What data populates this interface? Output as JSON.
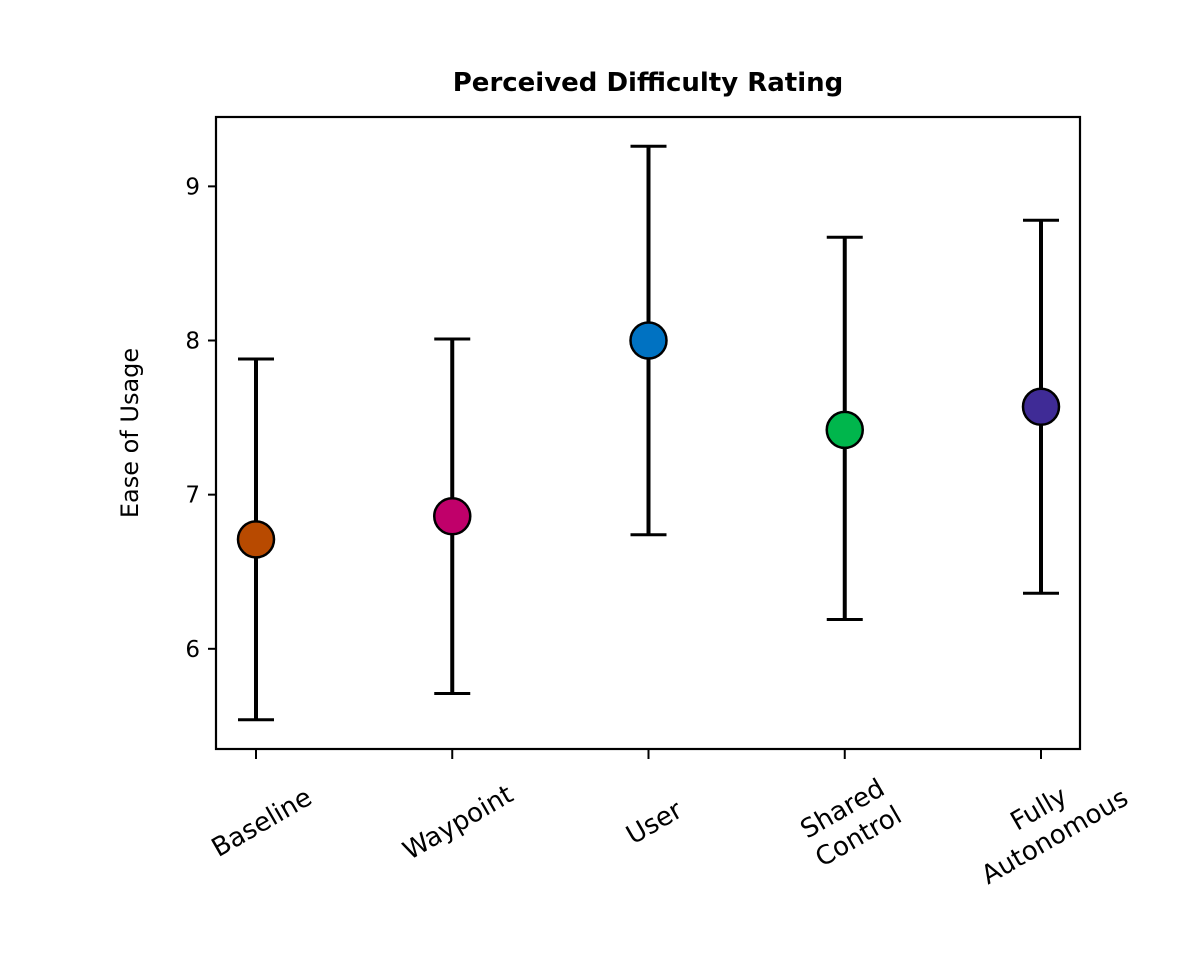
{
  "chart_data": {
    "type": "scatter",
    "title": "Perceived Difficulty Rating",
    "xlabel": "",
    "ylabel": "Ease of Usage",
    "ylim": [
      5.35,
      9.45
    ],
    "yticks": [
      6,
      7,
      8,
      9
    ],
    "grid": false,
    "legend": "none",
    "categories": [
      [
        "Baseline"
      ],
      [
        "Waypoint"
      ],
      [
        "User"
      ],
      [
        "Shared",
        "Control"
      ],
      [
        "Fully",
        "Autonomous"
      ]
    ],
    "means": [
      6.71,
      6.86,
      8.0,
      7.42,
      7.57
    ],
    "error_low": [
      5.54,
      5.71,
      6.74,
      6.19,
      6.36
    ],
    "error_high": [
      7.88,
      8.01,
      9.26,
      8.67,
      8.78
    ],
    "colors": [
      "#b84a00",
      "#c0006a",
      "#0072c2",
      "#00b64c",
      "#3f2b96"
    ]
  }
}
